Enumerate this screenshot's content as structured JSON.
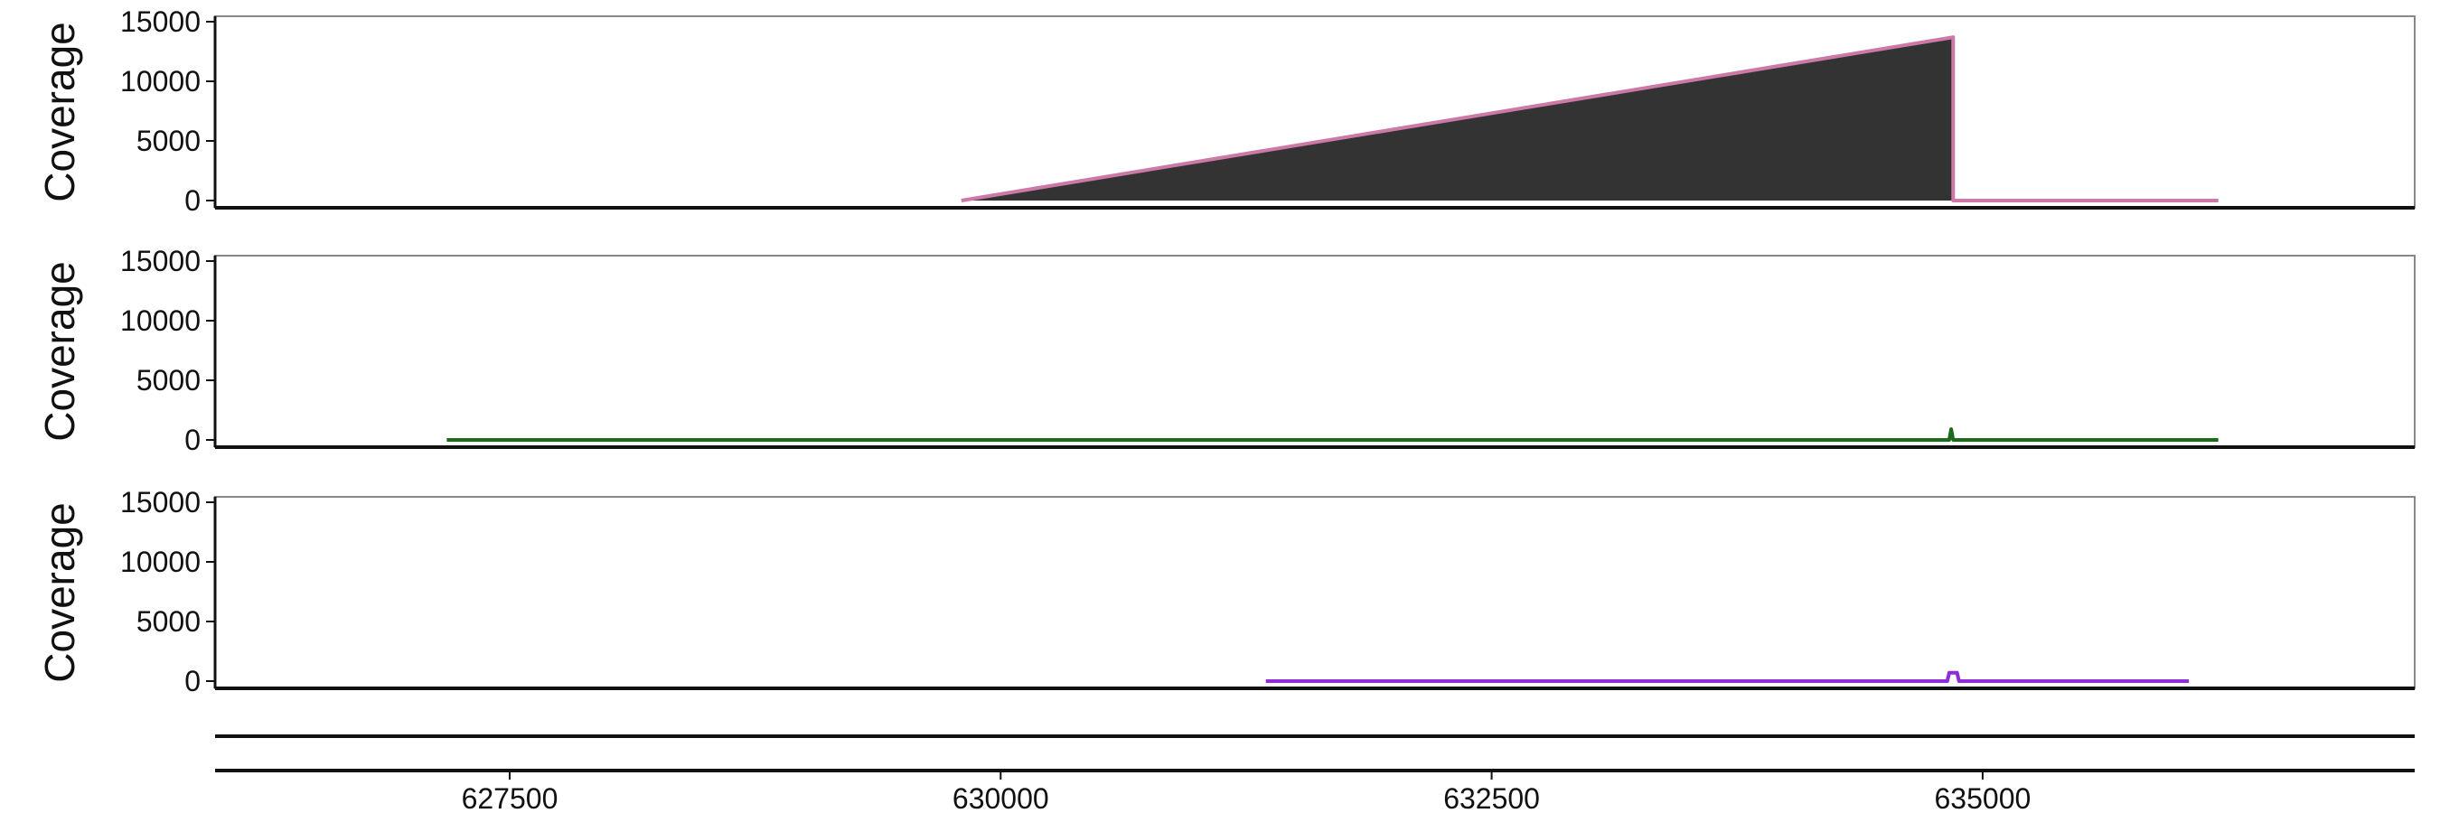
{
  "chart_data": {
    "type": "area",
    "x_ticks": [
      627500,
      630000,
      632500,
      635000
    ],
    "x_range": [
      626000,
      637200
    ],
    "panels": [
      {
        "ylabel": "Coverage",
        "ylim": [
          0,
          15000
        ],
        "y_ticks": [
          0,
          5000,
          10000,
          15000
        ],
        "fill": "#333333",
        "stroke": "#cc79a7",
        "x": [
          629800,
          634850,
          634850,
          636200
        ],
        "y": [
          0,
          13700,
          0,
          0
        ]
      },
      {
        "ylabel": "Coverage",
        "ylim": [
          0,
          15000
        ],
        "y_ticks": [
          0,
          5000,
          10000,
          15000
        ],
        "fill": "none",
        "stroke": "#1b6b1b",
        "x": [
          627180,
          634830,
          634840,
          634850,
          636200
        ],
        "y": [
          0,
          0,
          900,
          0,
          0
        ]
      },
      {
        "ylabel": "Coverage",
        "ylim": [
          0,
          15000
        ],
        "y_ticks": [
          0,
          5000,
          10000,
          15000
        ],
        "fill": "none",
        "stroke": "#8f2bd9",
        "x": [
          631350,
          634820,
          634830,
          634870,
          634880,
          636050
        ],
        "y": [
          0,
          0,
          700,
          700,
          0,
          0
        ]
      }
    ]
  }
}
